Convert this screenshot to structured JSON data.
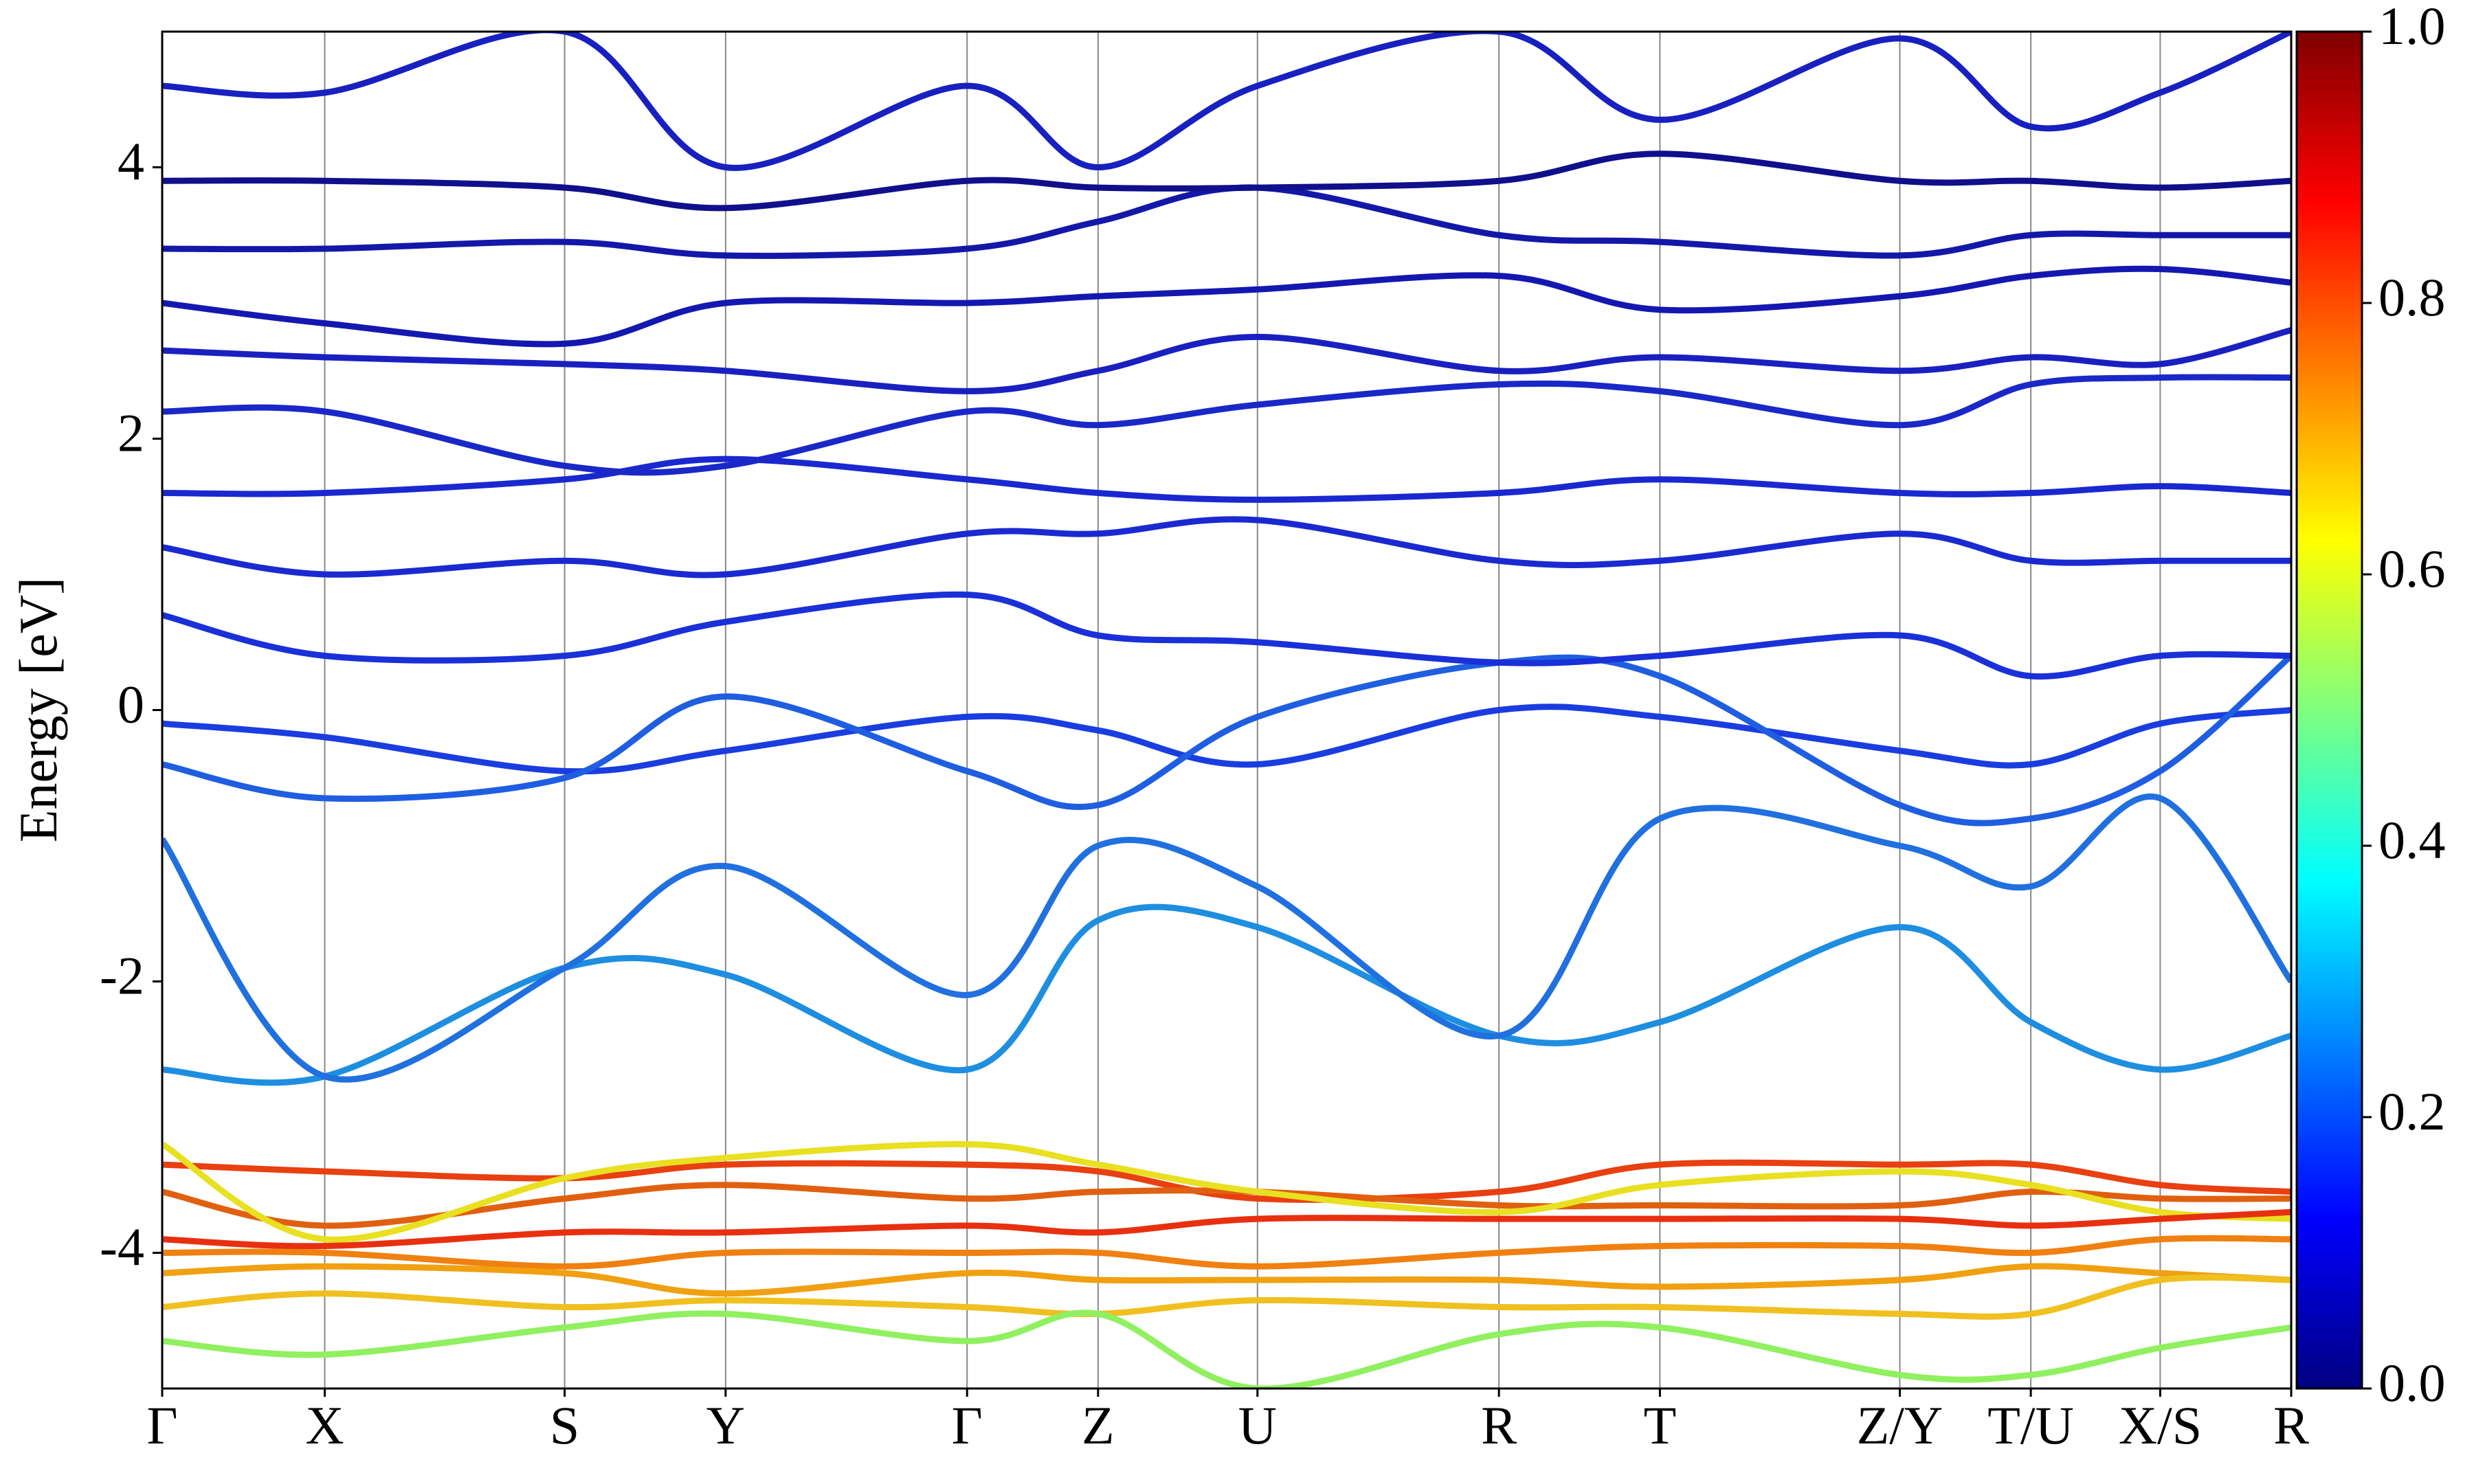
{
  "chart_data": {
    "type": "line",
    "ylabel": "Energy [eV]",
    "xlim": [
      0,
      1.349
    ],
    "ylim": [
      -5,
      5
    ],
    "yticks": [
      -4,
      -2,
      0,
      2,
      4
    ],
    "xticks": [
      {
        "value": 0,
        "label": "Γ"
      },
      {
        "value": 0.103,
        "label": "X"
      },
      {
        "value": 0.255,
        "label": "S"
      },
      {
        "value": 0.357,
        "label": "Y"
      },
      {
        "value": 0.51,
        "label": "Γ"
      },
      {
        "value": 0.593,
        "label": "Z"
      },
      {
        "value": 0.694,
        "label": "U"
      },
      {
        "value": 0.847,
        "label": "R"
      },
      {
        "value": 0.949,
        "label": "T"
      },
      {
        "value": 1.101,
        "label": "Z/Y"
      },
      {
        "value": 1.184,
        "label": "T/U"
      },
      {
        "value": 1.266,
        "label": "X/S"
      },
      {
        "value": 1.349,
        "label": "R"
      }
    ],
    "x": [
      0,
      0.103,
      0.255,
      0.357,
      0.51,
      0.593,
      0.694,
      0.847,
      0.949,
      1.101,
      1.184,
      1.266,
      1.349
    ],
    "series": [
      {
        "color": "#1e8ee0",
        "values": [
          -2.65,
          -2.7,
          -1.9,
          -1.95,
          -2.65,
          -1.55,
          -1.6,
          -2.4,
          -2.3,
          -1.6,
          -2.3,
          -2.65,
          -2.4
        ]
      },
      {
        "color": "#2070e0",
        "values": [
          -0.95,
          -2.7,
          -1.9,
          -1.15,
          -2.1,
          -1.0,
          -1.3,
          -2.4,
          -0.8,
          -1.0,
          -1.3,
          -0.65,
          -2.0
        ]
      },
      {
        "color": "#1a3de0",
        "values": [
          -0.1,
          -0.2,
          -0.45,
          -0.3,
          -0.05,
          -0.15,
          -0.4,
          0.0,
          -0.05,
          -0.3,
          -0.4,
          -0.1,
          0.0
        ]
      },
      {
        "color": "#1f5ee0",
        "values": [
          -0.4,
          -0.65,
          -0.5,
          0.1,
          -0.45,
          -0.7,
          -0.05,
          0.35,
          0.25,
          -0.7,
          -0.8,
          -0.45,
          0.4
        ]
      },
      {
        "color": "#1a30d8",
        "values": [
          0.7,
          0.4,
          0.4,
          0.65,
          0.85,
          0.55,
          0.5,
          0.35,
          0.4,
          0.55,
          0.25,
          0.4,
          0.4
        ]
      },
      {
        "color": "#1a2ad0",
        "values": [
          1.2,
          1.0,
          1.1,
          1.0,
          1.3,
          1.3,
          1.4,
          1.1,
          1.1,
          1.3,
          1.1,
          1.1,
          1.1
        ]
      },
      {
        "color": "#1a28d0",
        "values": [
          1.6,
          1.6,
          1.7,
          1.85,
          1.7,
          1.6,
          1.55,
          1.6,
          1.7,
          1.6,
          1.6,
          1.65,
          1.6
        ]
      },
      {
        "color": "#1a28c8",
        "values": [
          2.2,
          2.2,
          1.8,
          1.8,
          2.2,
          2.1,
          2.25,
          2.4,
          2.35,
          2.1,
          2.4,
          2.45,
          2.45
        ]
      },
      {
        "color": "#1a20c0",
        "values": [
          2.65,
          2.6,
          2.55,
          2.5,
          2.35,
          2.5,
          2.75,
          2.5,
          2.6,
          2.5,
          2.6,
          2.55,
          2.8
        ]
      },
      {
        "color": "#1418b0",
        "values": [
          3.0,
          2.85,
          2.7,
          3.0,
          3.0,
          3.05,
          3.1,
          3.2,
          2.95,
          3.05,
          3.2,
          3.25,
          3.15
        ]
      },
      {
        "color": "#1418a8",
        "values": [
          3.4,
          3.4,
          3.45,
          3.35,
          3.4,
          3.6,
          3.85,
          3.5,
          3.45,
          3.35,
          3.5,
          3.5,
          3.5
        ]
      },
      {
        "color": "#10108c",
        "values": [
          3.9,
          3.9,
          3.85,
          3.7,
          3.9,
          3.85,
          3.85,
          3.9,
          4.1,
          3.9,
          3.9,
          3.85,
          3.9
        ]
      },
      {
        "color": "#1820c0",
        "values": [
          4.6,
          4.55,
          5.0,
          4.0,
          4.6,
          4.0,
          4.6,
          5.0,
          4.35,
          4.95,
          4.3,
          4.55,
          5.0
        ]
      },
      {
        "color": "#e84010",
        "values": [
          -3.35,
          -3.4,
          -3.45,
          -3.35,
          -3.35,
          -3.4,
          -3.6,
          -3.55,
          -3.35,
          -3.35,
          -3.35,
          -3.5,
          -3.55
        ]
      },
      {
        "color": "#e06010",
        "values": [
          -3.55,
          -3.8,
          -3.6,
          -3.5,
          -3.6,
          -3.55,
          -3.55,
          -3.65,
          -3.65,
          -3.65,
          -3.55,
          -3.6,
          -3.6
        ]
      },
      {
        "color": "#e8e020",
        "values": [
          -3.2,
          -3.9,
          -3.45,
          -3.3,
          -3.2,
          -3.35,
          -3.55,
          -3.7,
          -3.5,
          -3.4,
          -3.5,
          -3.7,
          -3.75
        ]
      },
      {
        "color": "#e83010",
        "values": [
          -3.9,
          -3.95,
          -3.85,
          -3.85,
          -3.8,
          -3.85,
          -3.75,
          -3.75,
          -3.75,
          -3.75,
          -3.8,
          -3.75,
          -3.7
        ]
      },
      {
        "color": "#f08010",
        "values": [
          -4.0,
          -4.0,
          -4.1,
          -4.0,
          -4.0,
          -4.0,
          -4.1,
          -4.0,
          -3.95,
          -3.95,
          -4.0,
          -3.9,
          -3.9
        ]
      },
      {
        "color": "#f0a010",
        "values": [
          -4.15,
          -4.1,
          -4.15,
          -4.3,
          -4.15,
          -4.2,
          -4.2,
          -4.2,
          -4.25,
          -4.2,
          -4.1,
          -4.15,
          -4.2
        ]
      },
      {
        "color": "#f0c020",
        "values": [
          -4.4,
          -4.3,
          -4.4,
          -4.35,
          -4.4,
          -4.45,
          -4.35,
          -4.4,
          -4.4,
          -4.45,
          -4.45,
          -4.2,
          -4.2
        ]
      },
      {
        "color": "#90f060",
        "values": [
          -4.65,
          -4.75,
          -4.55,
          -4.45,
          -4.65,
          -4.45,
          -5.0,
          -4.6,
          -4.55,
          -4.9,
          -4.9,
          -4.7,
          -4.55
        ]
      }
    ],
    "colorbar": {
      "colormap": [
        "#00007f",
        "#0000ff",
        "#007fff",
        "#00ffff",
        "#7fff7f",
        "#ffff00",
        "#ff7f00",
        "#ff0000",
        "#7f0000"
      ],
      "ylim": [
        0,
        1
      ],
      "yticks": [
        {
          "value": 0,
          "label": "0.0"
        },
        {
          "value": 0.2,
          "label": "0.2"
        },
        {
          "value": 0.4,
          "label": "0.4"
        },
        {
          "value": 0.6,
          "label": "0.6"
        },
        {
          "value": 0.8,
          "label": "0.8"
        },
        {
          "value": 1,
          "label": "1.0"
        }
      ]
    }
  }
}
